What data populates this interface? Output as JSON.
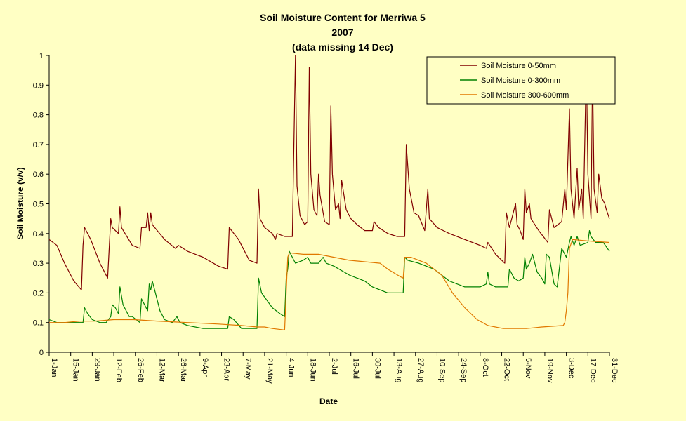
{
  "chart_data": {
    "type": "line",
    "title": [
      "Soil Moisture Content for Merriwa 5",
      "2007",
      "(data missing 14 Dec)"
    ],
    "xlabel": "Date",
    "ylabel": "Soil Moisture (v/v)",
    "ylim": [
      0,
      1
    ],
    "yticks": [
      "0",
      "0.1",
      "0.2",
      "0.3",
      "0.4",
      "0.5",
      "0.6",
      "0.7",
      "0.8",
      "0.9",
      "1"
    ],
    "xlim": [
      0,
      364
    ],
    "xticks": [
      {
        "label": "1-Jan",
        "day": 0
      },
      {
        "label": "15-Jan",
        "day": 14
      },
      {
        "label": "29-Jan",
        "day": 28
      },
      {
        "label": "12-Feb",
        "day": 42
      },
      {
        "label": "26-Feb",
        "day": 56
      },
      {
        "label": "12-Mar",
        "day": 70
      },
      {
        "label": "26-Mar",
        "day": 84
      },
      {
        "label": "9-Apr",
        "day": 98
      },
      {
        "label": "23-Apr",
        "day": 112
      },
      {
        "label": "7-May",
        "day": 126
      },
      {
        "label": "21-May",
        "day": 140
      },
      {
        "label": "4-Jun",
        "day": 154
      },
      {
        "label": "18-Jun",
        "day": 168
      },
      {
        "label": "2-Jul",
        "day": 182
      },
      {
        "label": "16-Jul",
        "day": 196
      },
      {
        "label": "30-Jul",
        "day": 210
      },
      {
        "label": "13-Aug",
        "day": 224
      },
      {
        "label": "27-Aug",
        "day": 238
      },
      {
        "label": "10-Sep",
        "day": 252
      },
      {
        "label": "24-Sep",
        "day": 266
      },
      {
        "label": "8-Oct",
        "day": 280
      },
      {
        "label": "22-Oct",
        "day": 294
      },
      {
        "label": "5-Nov",
        "day": 308
      },
      {
        "label": "19-Nov",
        "day": 322
      },
      {
        "label": "3-Dec",
        "day": 336
      },
      {
        "label": "17-Dec",
        "day": 350
      },
      {
        "label": "31-Dec",
        "day": 364
      }
    ],
    "grid": false,
    "legend_position": "top-right",
    "series": [
      {
        "name": "Soil Moisture 0-50mm",
        "color": "#800000",
        "points": [
          [
            0,
            0.38
          ],
          [
            5,
            0.36
          ],
          [
            10,
            0.3
          ],
          [
            16,
            0.24
          ],
          [
            21,
            0.21
          ],
          [
            22,
            0.36
          ],
          [
            23,
            0.42
          ],
          [
            27,
            0.38
          ],
          [
            33,
            0.3
          ],
          [
            38,
            0.25
          ],
          [
            40,
            0.45
          ],
          [
            41,
            0.42
          ],
          [
            45,
            0.4
          ],
          [
            46,
            0.49
          ],
          [
            47,
            0.42
          ],
          [
            54,
            0.36
          ],
          [
            59,
            0.35
          ],
          [
            60,
            0.42
          ],
          [
            63,
            0.42
          ],
          [
            64,
            0.47
          ],
          [
            65,
            0.41
          ],
          [
            66,
            0.47
          ],
          [
            67,
            0.43
          ],
          [
            75,
            0.38
          ],
          [
            82,
            0.35
          ],
          [
            84,
            0.36
          ],
          [
            90,
            0.34
          ],
          [
            100,
            0.32
          ],
          [
            110,
            0.29
          ],
          [
            116,
            0.28
          ],
          [
            117,
            0.42
          ],
          [
            123,
            0.38
          ],
          [
            130,
            0.31
          ],
          [
            135,
            0.3
          ],
          [
            136,
            0.55
          ],
          [
            137,
            0.45
          ],
          [
            140,
            0.42
          ],
          [
            145,
            0.4
          ],
          [
            147,
            0.38
          ],
          [
            148,
            0.4
          ],
          [
            153,
            0.39
          ],
          [
            158,
            0.39
          ],
          [
            159,
            0.7
          ],
          [
            160,
            1.0
          ],
          [
            161,
            0.56
          ],
          [
            163,
            0.46
          ],
          [
            166,
            0.43
          ],
          [
            168,
            0.44
          ],
          [
            169,
            0.96
          ],
          [
            170,
            0.6
          ],
          [
            172,
            0.48
          ],
          [
            174,
            0.46
          ],
          [
            175,
            0.6
          ],
          [
            176,
            0.53
          ],
          [
            178,
            0.47
          ],
          [
            179,
            0.44
          ],
          [
            182,
            0.43
          ],
          [
            183,
            0.83
          ],
          [
            184,
            0.6
          ],
          [
            186,
            0.48
          ],
          [
            188,
            0.5
          ],
          [
            189,
            0.45
          ],
          [
            190,
            0.58
          ],
          [
            193,
            0.48
          ],
          [
            196,
            0.45
          ],
          [
            200,
            0.43
          ],
          [
            205,
            0.41
          ],
          [
            210,
            0.41
          ],
          [
            211,
            0.44
          ],
          [
            214,
            0.42
          ],
          [
            220,
            0.4
          ],
          [
            226,
            0.39
          ],
          [
            231,
            0.39
          ],
          [
            232,
            0.7
          ],
          [
            234,
            0.55
          ],
          [
            237,
            0.47
          ],
          [
            240,
            0.46
          ],
          [
            244,
            0.41
          ],
          [
            246,
            0.55
          ],
          [
            247,
            0.45
          ],
          [
            252,
            0.42
          ],
          [
            260,
            0.4
          ],
          [
            270,
            0.38
          ],
          [
            280,
            0.36
          ],
          [
            284,
            0.35
          ],
          [
            285,
            0.37
          ],
          [
            290,
            0.33
          ],
          [
            296,
            0.3
          ],
          [
            297,
            0.47
          ],
          [
            299,
            0.42
          ],
          [
            303,
            0.5
          ],
          [
            304,
            0.43
          ],
          [
            306,
            0.41
          ],
          [
            308,
            0.38
          ],
          [
            309,
            0.55
          ],
          [
            310,
            0.47
          ],
          [
            312,
            0.5
          ],
          [
            313,
            0.45
          ],
          [
            318,
            0.41
          ],
          [
            324,
            0.37
          ],
          [
            325,
            0.48
          ],
          [
            328,
            0.42
          ],
          [
            333,
            0.44
          ],
          [
            335,
            0.55
          ],
          [
            336,
            0.48
          ],
          [
            338,
            0.82
          ],
          [
            339,
            0.55
          ],
          [
            341,
            0.45
          ],
          [
            343,
            0.62
          ],
          [
            344,
            0.48
          ],
          [
            346,
            0.55
          ],
          [
            347,
            0.45
          ],
          [
            349,
            0.98
          ],
          [
            350,
            0.6
          ],
          [
            352,
            0.45
          ],
          [
            353,
            0.95
          ],
          [
            354,
            0.55
          ],
          [
            356,
            0.47
          ],
          [
            357,
            0.6
          ],
          [
            359,
            0.52
          ],
          [
            361,
            0.5
          ],
          [
            362,
            0.48
          ],
          [
            364,
            0.45
          ]
        ]
      },
      {
        "name": "Soil Moisture 0-300mm",
        "color": "#008000",
        "points": [
          [
            0,
            0.11
          ],
          [
            5,
            0.1
          ],
          [
            10,
            0.1
          ],
          [
            15,
            0.1
          ],
          [
            22,
            0.1
          ],
          [
            23,
            0.15
          ],
          [
            25,
            0.13
          ],
          [
            28,
            0.11
          ],
          [
            33,
            0.1
          ],
          [
            37,
            0.1
          ],
          [
            40,
            0.12
          ],
          [
            41,
            0.16
          ],
          [
            43,
            0.15
          ],
          [
            45,
            0.13
          ],
          [
            46,
            0.22
          ],
          [
            48,
            0.16
          ],
          [
            52,
            0.12
          ],
          [
            54,
            0.12
          ],
          [
            59,
            0.1
          ],
          [
            60,
            0.18
          ],
          [
            62,
            0.16
          ],
          [
            64,
            0.14
          ],
          [
            65,
            0.23
          ],
          [
            66,
            0.21
          ],
          [
            67,
            0.24
          ],
          [
            69,
            0.2
          ],
          [
            72,
            0.14
          ],
          [
            75,
            0.11
          ],
          [
            80,
            0.1
          ],
          [
            83,
            0.12
          ],
          [
            85,
            0.1
          ],
          [
            90,
            0.09
          ],
          [
            100,
            0.08
          ],
          [
            110,
            0.08
          ],
          [
            116,
            0.08
          ],
          [
            117,
            0.12
          ],
          [
            120,
            0.11
          ],
          [
            125,
            0.08
          ],
          [
            135,
            0.08
          ],
          [
            136,
            0.25
          ],
          [
            138,
            0.2
          ],
          [
            145,
            0.15
          ],
          [
            150,
            0.13
          ],
          [
            153,
            0.12
          ],
          [
            154,
            0.25
          ],
          [
            155,
            0.28
          ],
          [
            156,
            0.34
          ],
          [
            158,
            0.32
          ],
          [
            160,
            0.3
          ],
          [
            165,
            0.31
          ],
          [
            168,
            0.32
          ],
          [
            170,
            0.3
          ],
          [
            175,
            0.3
          ],
          [
            178,
            0.32
          ],
          [
            180,
            0.3
          ],
          [
            185,
            0.29
          ],
          [
            195,
            0.26
          ],
          [
            205,
            0.24
          ],
          [
            210,
            0.22
          ],
          [
            215,
            0.21
          ],
          [
            220,
            0.2
          ],
          [
            230,
            0.2
          ],
          [
            231,
            0.32
          ],
          [
            233,
            0.31
          ],
          [
            240,
            0.3
          ],
          [
            250,
            0.28
          ],
          [
            260,
            0.24
          ],
          [
            270,
            0.22
          ],
          [
            280,
            0.22
          ],
          [
            284,
            0.23
          ],
          [
            285,
            0.27
          ],
          [
            286,
            0.23
          ],
          [
            290,
            0.22
          ],
          [
            298,
            0.22
          ],
          [
            299,
            0.28
          ],
          [
            302,
            0.25
          ],
          [
            305,
            0.24
          ],
          [
            308,
            0.25
          ],
          [
            309,
            0.32
          ],
          [
            310,
            0.28
          ],
          [
            312,
            0.3
          ],
          [
            314,
            0.33
          ],
          [
            317,
            0.27
          ],
          [
            320,
            0.25
          ],
          [
            322,
            0.23
          ],
          [
            323,
            0.33
          ],
          [
            325,
            0.32
          ],
          [
            328,
            0.23
          ],
          [
            330,
            0.22
          ],
          [
            333,
            0.35
          ],
          [
            336,
            0.32
          ],
          [
            338,
            0.37
          ],
          [
            339,
            0.39
          ],
          [
            341,
            0.36
          ],
          [
            343,
            0.39
          ],
          [
            345,
            0.36
          ],
          [
            350,
            0.37
          ],
          [
            351,
            0.41
          ],
          [
            352,
            0.39
          ],
          [
            355,
            0.37
          ],
          [
            360,
            0.37
          ],
          [
            364,
            0.34
          ]
        ]
      },
      {
        "name": "Soil Moisture 300-600mm",
        "color": "#e07800",
        "points": [
          [
            0,
            0.1
          ],
          [
            10,
            0.1
          ],
          [
            20,
            0.105
          ],
          [
            30,
            0.105
          ],
          [
            42,
            0.11
          ],
          [
            55,
            0.11
          ],
          [
            70,
            0.105
          ],
          [
            90,
            0.1
          ],
          [
            110,
            0.095
          ],
          [
            125,
            0.09
          ],
          [
            135,
            0.085
          ],
          [
            140,
            0.085
          ],
          [
            145,
            0.08
          ],
          [
            153,
            0.075
          ],
          [
            154,
            0.2
          ],
          [
            155,
            0.32
          ],
          [
            156,
            0.335
          ],
          [
            165,
            0.33
          ],
          [
            175,
            0.33
          ],
          [
            185,
            0.32
          ],
          [
            195,
            0.31
          ],
          [
            205,
            0.305
          ],
          [
            215,
            0.3
          ],
          [
            220,
            0.28
          ],
          [
            228,
            0.255
          ],
          [
            230,
            0.25
          ],
          [
            231,
            0.32
          ],
          [
            235,
            0.32
          ],
          [
            245,
            0.3
          ],
          [
            255,
            0.26
          ],
          [
            262,
            0.2
          ],
          [
            270,
            0.15
          ],
          [
            278,
            0.11
          ],
          [
            285,
            0.09
          ],
          [
            295,
            0.08
          ],
          [
            310,
            0.08
          ],
          [
            320,
            0.085
          ],
          [
            334,
            0.09
          ],
          [
            335,
            0.1
          ],
          [
            336,
            0.14
          ],
          [
            337,
            0.2
          ],
          [
            338,
            0.35
          ],
          [
            340,
            0.38
          ],
          [
            350,
            0.375
          ],
          [
            364,
            0.37
          ]
        ]
      }
    ]
  }
}
